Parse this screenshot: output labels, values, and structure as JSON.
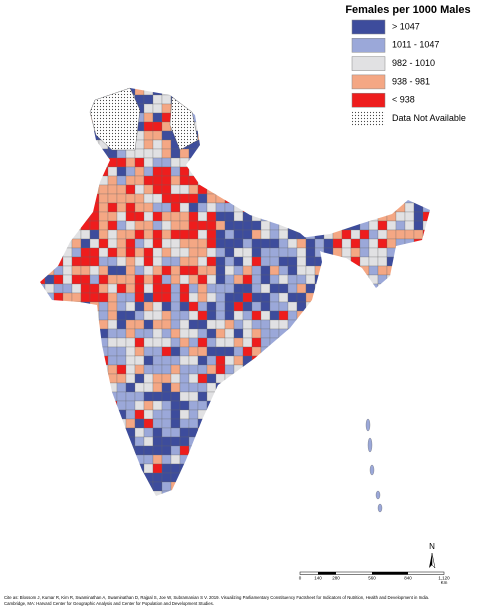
{
  "legend": {
    "title": "Females per 1000 Males",
    "items": [
      {
        "label": "> 1047",
        "color": "#3d4c9c"
      },
      {
        "label": "1011 - 1047",
        "color": "#9ba8d9"
      },
      {
        "label": "982 - 1010",
        "color": "#e1e1e3"
      },
      {
        "label": "938 - 981",
        "color": "#f4a784"
      },
      {
        "label": "< 938",
        "color": "#ee1d1d"
      },
      {
        "label": "Data Not Available",
        "color": "pattern"
      }
    ]
  },
  "north": "N",
  "scale_bar": {
    "labels": [
      "0",
      "140",
      "280",
      "560",
      "840",
      "1,120"
    ],
    "unit": "Km"
  },
  "citation": [
    "Cite as: Blossom J, Kumar R, Kim R, Swaminathan A, Swaminathan D, Rajpal S, Joe W, Subramanian S V. 2019. Visualizing Parliamentary Constituency Factsheet for Indicators of Nutrition, Health and Development in India.",
    "Cambridge, MA: Harvard Center for Geographic Analysis and Center for Population and Development Studies."
  ]
}
